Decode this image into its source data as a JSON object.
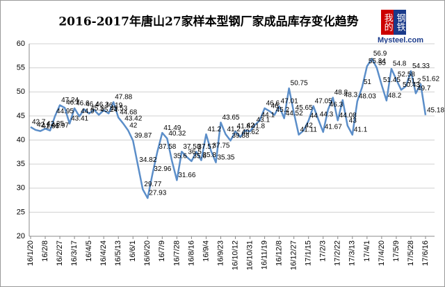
{
  "chart_data": {
    "type": "line",
    "title": "2016-2017年唐山27家样本型钢厂家成品库存变化趋势",
    "logo_text": [
      "我的",
      "钢铁"
    ],
    "logo_url": "Mysteel.com",
    "categories": [
      "16/1/20",
      null,
      null,
      "16/2/8",
      null,
      null,
      "16/2/27",
      null,
      null,
      "16/3/17",
      null,
      null,
      "16/4/5",
      null,
      null,
      "16/4/24",
      null,
      null,
      "16/5/13",
      null,
      null,
      "16/6/1",
      null,
      null,
      "16/6/20",
      null,
      null,
      "16/7/9",
      null,
      null,
      "16/7/28",
      null,
      null,
      "16/8/16",
      null,
      null,
      "16/9/4",
      null,
      null,
      "16/9/23",
      null,
      null,
      "16/10/12",
      null,
      null,
      "16/10/31",
      null,
      null,
      "16/11/19",
      null,
      null,
      "16/12/8",
      null,
      null,
      "16/12/27",
      null,
      null,
      "17/1/15",
      null,
      null,
      "17/2/3",
      null,
      null,
      "17/2/22",
      null,
      null,
      "17/3/13",
      null,
      null,
      "17/4/1",
      null,
      null,
      "17/4/20",
      null,
      null,
      "17/5/9",
      null,
      null,
      "17/5/28",
      null,
      null,
      "17/6/16"
    ],
    "series": [
      {
        "color": "#5b8ec9",
        "values": [
          42.7,
          42.1,
          41.86,
          42.35,
          41.97,
          44.95,
          47.24,
          46.7,
          43.41,
          46.6,
          44.9,
          46.4,
          45.5,
          46.3,
          45.24,
          46.19,
          45.53,
          47.88,
          44.68,
          43.42,
          42.0,
          39.87,
          34.82,
          29.77,
          27.93,
          32.96,
          37.58,
          41.49,
          40.32,
          35.6,
          31.66,
          37.58,
          36.5,
          35.6,
          37.57,
          35.8,
          41.2,
          37.75,
          35.35,
          43.65,
          41.2,
          39.88,
          41.8,
          40.62,
          42.0,
          41.8,
          43.1,
          44.1,
          46.6,
          46.0,
          45.2,
          47.01,
          44.52,
          50.75,
          45.65,
          41.11,
          42.0,
          44.0,
          47.05,
          44.3,
          41.67,
          46.3,
          48.8,
          44.08,
          48.3,
          43.0,
          41.1,
          48.03,
          51.0,
          55.34,
          56.9,
          55.0,
          51.45,
          48.2,
          54.8,
          52.58,
          50.43,
          51.2,
          54.33,
          49.7,
          51.62,
          45.18
        ]
      }
    ],
    "ylim": [
      20,
      60
    ],
    "yticks": [
      20,
      25,
      30,
      35,
      40,
      45,
      50,
      55,
      60
    ],
    "grid": true
  }
}
